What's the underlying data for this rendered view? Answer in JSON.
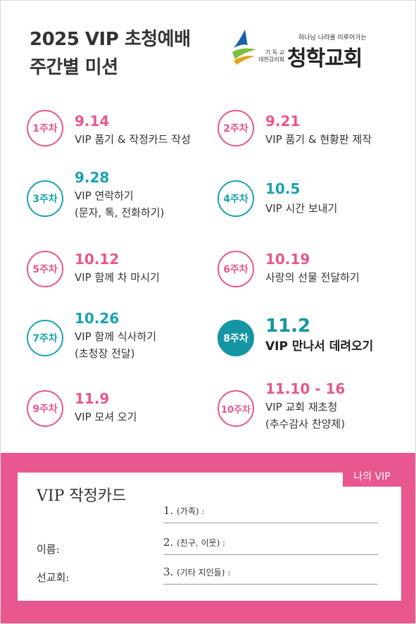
{
  "header": {
    "title_line1": "2025 VIP 초청예배",
    "title_line2": "주간별 미션"
  },
  "logo": {
    "slogan": "하나님 나라를 이루어가는",
    "denomination": "기 독 교\n대한감리회",
    "church_name": "청학교회"
  },
  "weeks": [
    {
      "badge": "1주차",
      "date": "9.14",
      "desc": "VIP 품기 & 작정카드 작성"
    },
    {
      "badge": "2주차",
      "date": "9.21",
      "desc": "VIP 품기 & 현황판 제작"
    },
    {
      "badge": "3주차",
      "date": "9.28",
      "desc": "VIP 연락하기\n(문자, 톡, 전화하기)"
    },
    {
      "badge": "4주차",
      "date": "10.5",
      "desc": "VIP 시간 보내기"
    },
    {
      "badge": "5주차",
      "date": "10.12",
      "desc": "VIP 함께 차 마시기"
    },
    {
      "badge": "6주차",
      "date": "10.19",
      "desc": "사랑의 선물 전달하기"
    },
    {
      "badge": "7주차",
      "date": "10.26",
      "desc": "VIP 함께 식사하기\n(초청장 전달)"
    },
    {
      "badge": "8주차",
      "date": "11.2",
      "desc": "VIP 만나서 데려오기"
    },
    {
      "badge": "9주차",
      "date": "11.9",
      "desc": "VIP 모셔 오기"
    },
    {
      "badge": "10주차",
      "date": "11.10 - 16",
      "desc": "VIP 교회 재초청\n(추수감사 찬양제)"
    }
  ],
  "card": {
    "tab": "나의 VIP",
    "title": "VIP 작정카드",
    "name_label": "이름:",
    "church_label": "선교회:",
    "items": [
      {
        "num": "1.",
        "hint": "(가족) :"
      },
      {
        "num": "2.",
        "hint": "(친구, 이웃) :"
      },
      {
        "num": "3.",
        "hint": "(기타 지인들) :"
      }
    ]
  },
  "colors": {
    "pink": "#e8578f",
    "teal": "#1aa2b0",
    "teal_active": "#1495a3"
  }
}
